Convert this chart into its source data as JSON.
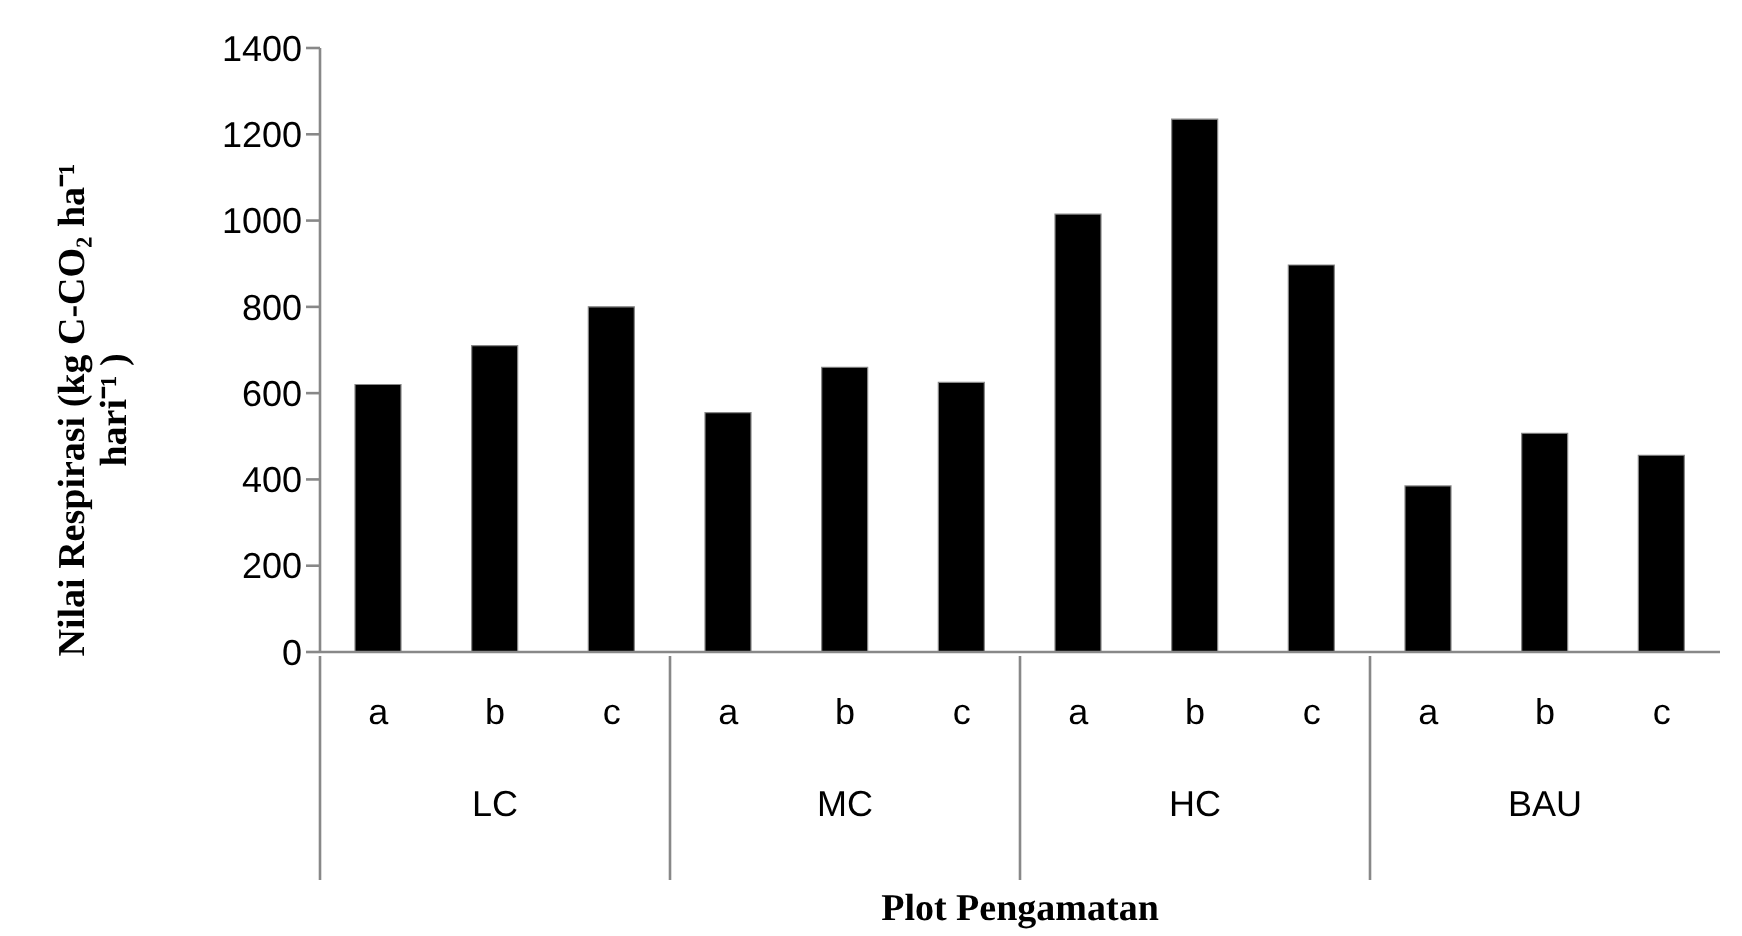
{
  "chart_data": {
    "type": "bar",
    "categories": [
      "a",
      "b",
      "c",
      "a",
      "b",
      "c",
      "a",
      "b",
      "c",
      "a",
      "b",
      "c"
    ],
    "values": [
      620,
      710,
      800,
      555,
      660,
      625,
      1015,
      1235,
      897,
      385,
      507,
      456
    ],
    "color": "#000000",
    "ylim": [
      0,
      1400
    ],
    "yticks": [
      0,
      200,
      400,
      600,
      800,
      1000,
      1200,
      1400
    ],
    "xlabel": "Plot Pengamatan",
    "ylabel": "Nilai Respirasi (kg C-CO₂ ha⁻¹ hari⁻¹ )",
    "annotations": [
      "LC",
      "MC",
      "HC",
      "BAU"
    ]
  }
}
